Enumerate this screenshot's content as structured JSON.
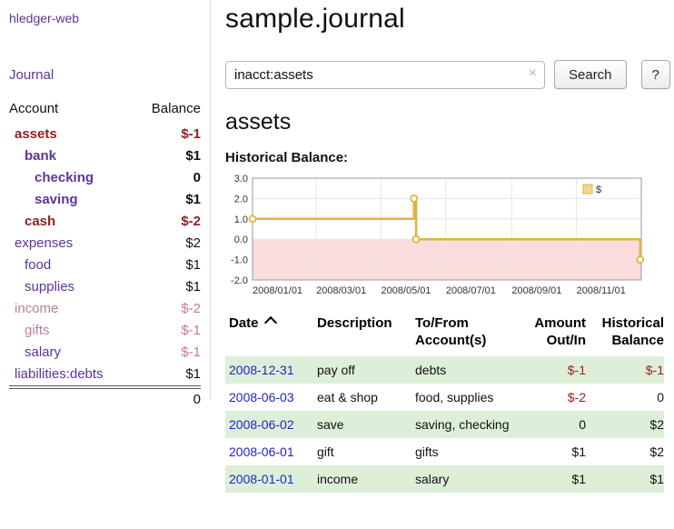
{
  "app": {
    "name": "hledger-web"
  },
  "header": {
    "title": "sample.journal"
  },
  "search": {
    "value": "inacct:assets",
    "clear_icon": "×",
    "button_label": "Search",
    "help_label": "?"
  },
  "sidebar": {
    "journal_label": "Journal",
    "accounts": {
      "headers": {
        "account": "Account",
        "balance": "Balance"
      },
      "rows": [
        {
          "name": "assets",
          "indent": 0,
          "name_class": "acct-cur-neg",
          "balance": "$-1",
          "bal_class": "bal-cur-neg"
        },
        {
          "name": "bank",
          "indent": 1,
          "name_class": "acct-cur",
          "balance": "$1",
          "bal_class": "bal-cur"
        },
        {
          "name": "checking",
          "indent": 2,
          "name_class": "acct-cur",
          "balance": "0",
          "bal_class": "bal-cur"
        },
        {
          "name": "saving",
          "indent": 2,
          "name_class": "acct-cur",
          "balance": "$1",
          "bal_class": "bal-cur"
        },
        {
          "name": "cash",
          "indent": 1,
          "name_class": "acct-cur-neg",
          "balance": "$-2",
          "bal_class": "bal-cur-neg"
        },
        {
          "name": "expenses",
          "indent": 0,
          "name_class": "acct",
          "balance": "$2",
          "bal_class": "bal"
        },
        {
          "name": "food",
          "indent": 1,
          "name_class": "acct",
          "balance": "$1",
          "bal_class": "bal"
        },
        {
          "name": "supplies",
          "indent": 1,
          "name_class": "acct",
          "balance": "$1",
          "bal_class": "bal"
        },
        {
          "name": "income",
          "indent": 0,
          "name_class": "acct-faded",
          "balance": "$-2",
          "bal_class": "bal-neg-faded"
        },
        {
          "name": "gifts",
          "indent": 1,
          "name_class": "acct-faded",
          "balance": "$-1",
          "bal_class": "bal-neg-faded"
        },
        {
          "name": "salary",
          "indent": 1,
          "name_class": "acct",
          "balance": "$-1",
          "bal_class": "bal-neg-faded"
        },
        {
          "name": "liabilities:debts",
          "indent": 0,
          "name_class": "acct",
          "balance": "$1",
          "bal_class": "bal"
        }
      ],
      "total": "0"
    }
  },
  "main": {
    "section_title": "assets"
  },
  "chart_data": {
    "type": "line",
    "title": "Historical Balance:",
    "x_unit": "day of 2008",
    "xlim": [
      0,
      366
    ],
    "ylim": [
      -2,
      3
    ],
    "y_ticks": [
      "3.0",
      "2.0",
      "1.0",
      "0.0",
      "-1.0",
      "-2.0"
    ],
    "x_ticks": [
      {
        "x": 0,
        "label": "2008/01/01"
      },
      {
        "x": 60,
        "label": "2008/03/01"
      },
      {
        "x": 121,
        "label": "2008/05/01"
      },
      {
        "x": 182,
        "label": "2008/07/01"
      },
      {
        "x": 244,
        "label": "2008/09/01"
      },
      {
        "x": 305,
        "label": "2008/11/01"
      }
    ],
    "legend": {
      "label": "$",
      "position": "top-right"
    },
    "negative_region_color": "#fbdcdc",
    "grid": true,
    "series": [
      {
        "name": "$",
        "color": "#dcb53e",
        "type": "step",
        "points": [
          {
            "x": 0,
            "y": 1.0
          },
          {
            "x": 152,
            "y": 1.0
          },
          {
            "x": 152,
            "y": 2.0
          },
          {
            "x": 154,
            "y": 2.0
          },
          {
            "x": 154,
            "y": 0.0
          },
          {
            "x": 365,
            "y": 0.0
          },
          {
            "x": 365,
            "y": -1.0
          }
        ],
        "markers": [
          {
            "x": 0,
            "y": 1.0
          },
          {
            "x": 152,
            "y": 2.0
          },
          {
            "x": 154,
            "y": 0.0
          },
          {
            "x": 365,
            "y": -1.0
          }
        ],
        "data_points": [
          {
            "date": "2008-01-01",
            "balance": 1
          },
          {
            "date": "2008-06-01",
            "balance": 2
          },
          {
            "date": "2008-06-02",
            "balance": 2
          },
          {
            "date": "2008-06-03",
            "balance": 0
          },
          {
            "date": "2008-12-31",
            "balance": -1
          }
        ]
      }
    ]
  },
  "register": {
    "headers": [
      {
        "key": "date",
        "label": "Date",
        "sortable": true,
        "sort_direction": "ascending"
      },
      {
        "key": "description",
        "label": "Description"
      },
      {
        "key": "accounts",
        "label": "To/From Account(s)"
      },
      {
        "key": "amount",
        "label": "Amount Out/In",
        "align": "right"
      },
      {
        "key": "balance",
        "label": "Historical Balance",
        "align": "right"
      }
    ],
    "rows": [
      {
        "date": "2008-12-31",
        "description": "pay off",
        "accounts": "debts",
        "amount": "$-1",
        "amount_negative": true,
        "balance": "$-1",
        "balance_negative": true,
        "shaded": true
      },
      {
        "date": "2008-06-03",
        "description": "eat & shop",
        "accounts": "food, supplies",
        "amount": "$-2",
        "amount_negative": true,
        "balance": "0",
        "balance_negative": false,
        "shaded": false
      },
      {
        "date": "2008-06-02",
        "description": "save",
        "accounts": "saving, checking",
        "amount": "0",
        "amount_negative": false,
        "balance": "$2",
        "balance_negative": false,
        "shaded": true
      },
      {
        "date": "2008-06-01",
        "description": "gift",
        "accounts": "gifts",
        "amount": "$1",
        "amount_negative": false,
        "balance": "$2",
        "balance_negative": false,
        "shaded": false
      },
      {
        "date": "2008-01-01",
        "description": "income",
        "accounts": "salary",
        "amount": "$1",
        "amount_negative": false,
        "balance": "$1",
        "balance_negative": false,
        "shaded": true
      }
    ]
  },
  "colors": {
    "purple": "#5c3597",
    "maroon": "#8b2323",
    "faded_purple": "#b77fa3",
    "faded_red": "#c97c7c",
    "negative_red": "#9d1c1c",
    "link_blue": "#2222cc",
    "row_green": "#ddefd8",
    "chart_gold": "#dcb53e",
    "chart_negative_bg": "#fbdcdc",
    "divider_gray": "#d9d9d9"
  }
}
